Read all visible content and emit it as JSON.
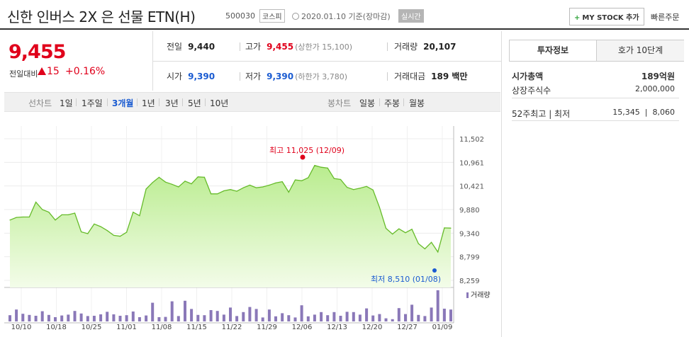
{
  "header": {
    "title": "신한 인버스 2X 은 선물 ETN(H)",
    "code": "500030",
    "market": "코스피",
    "as_of": "2020.01.10 기준(장마감)",
    "realtime": "실시간",
    "mystock": "MY STOCK 추가",
    "quick_order": "빠른주문"
  },
  "price": {
    "current": "9,455",
    "change_label": "전일대비",
    "change": "15",
    "change_pct": "+0.16%"
  },
  "summary": {
    "prev_label": "전일",
    "prev": "9,440",
    "high_label": "고가",
    "high": "9,455",
    "upper_limit": "(상한가 15,100)",
    "volume_label": "거래량",
    "volume": "20,107",
    "open_label": "시가",
    "open": "9,390",
    "low_label": "저가",
    "low": "9,390",
    "lower_limit": "(하한가 3,780)",
    "amount_label": "거래대금",
    "amount": "189 백만"
  },
  "chart_tabs": {
    "line_label": "선차트",
    "periods": [
      "1일",
      "1주일",
      "3개월",
      "1년",
      "3년",
      "5년",
      "10년"
    ],
    "selected": "3개월",
    "candle_label": "봉차트",
    "candles": [
      "일봉",
      "주봉",
      "월봉"
    ]
  },
  "right_panel": {
    "tab_info": "투자정보",
    "tab_quote": "호가 10단계",
    "market_cap_label": "시가총액",
    "market_cap": "189억원",
    "shares_label": "상장주식수",
    "shares": "2,000,000",
    "week52_label": "52주최고 | 최저",
    "week52_high": "15,345",
    "week52_low": "8,060"
  },
  "chart_data": {
    "type": "area",
    "y_ticks": [
      "11,502",
      "10,961",
      "10,421",
      "9,880",
      "9,340",
      "8,799",
      "8,259"
    ],
    "ylim": [
      8259,
      11502
    ],
    "x_labels": [
      "10/10",
      "10/18",
      "10/25",
      "11/01",
      "11/08",
      "11/15",
      "11/22",
      "11/29",
      "12/06",
      "12/13",
      "12/20",
      "12/27",
      "01/09"
    ],
    "high_annotation": "최고 11,025 (12/09)",
    "low_annotation": "최저 8,510 (01/08)",
    "volume_legend": "거래량",
    "price_color": "#7acb3a",
    "volume_color": "#8a78b8",
    "prices": [
      9640,
      9700,
      9710,
      9710,
      10050,
      9880,
      9820,
      9640,
      9760,
      9760,
      9800,
      9370,
      9330,
      9550,
      9490,
      9400,
      9290,
      9270,
      9360,
      9820,
      9740,
      10350,
      10500,
      10620,
      10510,
      10460,
      10400,
      10530,
      10470,
      10630,
      10620,
      10240,
      10240,
      10310,
      10340,
      10300,
      10380,
      10440,
      10380,
      10400,
      10440,
      10490,
      10520,
      10280,
      10560,
      10540,
      10610,
      10890,
      10850,
      10830,
      10590,
      10570,
      10390,
      10340,
      10370,
      10410,
      10330,
      9930,
      9450,
      9320,
      9440,
      9350,
      9430,
      9100,
      8980,
      9130,
      8910,
      9460,
      9455
    ],
    "volumes": [
      2200,
      4200,
      2700,
      2300,
      2000,
      3600,
      2300,
      1500,
      2100,
      2400,
      3700,
      2800,
      1900,
      2000,
      2500,
      3400,
      2500,
      2000,
      2200,
      3500,
      1500,
      2100,
      6600,
      1500,
      1600,
      7100,
      1900,
      7300,
      4400,
      2300,
      2200,
      4000,
      3700,
      2400,
      4900,
      1900,
      3300,
      5100,
      4400,
      1400,
      4200,
      1800,
      2900,
      2200,
      1400,
      5700,
      1800,
      2400,
      3300,
      2200,
      3300,
      2000,
      3400,
      3300,
      2400,
      4600,
      2100,
      2600,
      1100,
      800,
      4700,
      2600,
      5900,
      2300,
      1900,
      4900,
      11000,
      4500,
      4200
    ]
  }
}
